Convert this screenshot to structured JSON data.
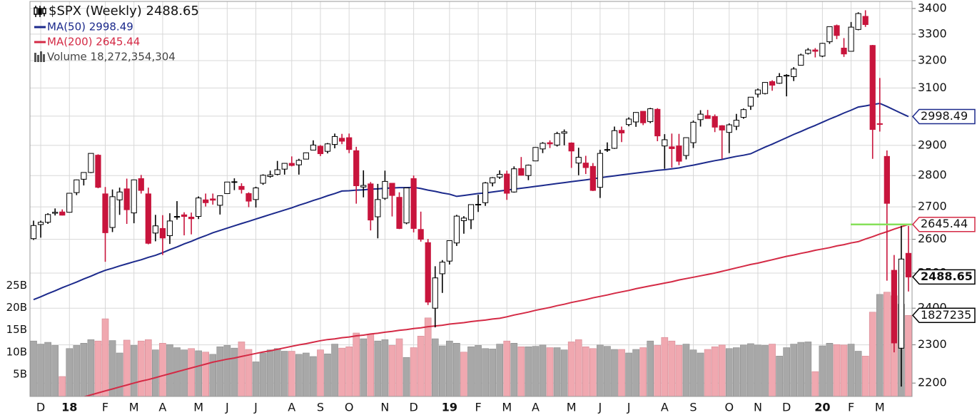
{
  "chart_data": {
    "type": "candlestick",
    "title": "$SPX (Weekly) 2488.65",
    "categories": [
      null,
      "D",
      null,
      null,
      null,
      "18",
      null,
      null,
      null,
      null,
      "F",
      null,
      null,
      null,
      "M",
      null,
      null,
      null,
      "A",
      null,
      null,
      null,
      null,
      "M",
      null,
      null,
      null,
      "J",
      null,
      null,
      null,
      "J",
      null,
      null,
      null,
      null,
      "A",
      null,
      null,
      null,
      "S",
      null,
      null,
      null,
      "O",
      null,
      null,
      null,
      null,
      "N",
      null,
      null,
      null,
      "D",
      null,
      null,
      null,
      null,
      "19",
      null,
      null,
      null,
      "F",
      null,
      null,
      null,
      "M",
      null,
      null,
      null,
      "A",
      null,
      null,
      null,
      null,
      "M",
      null,
      null,
      null,
      "J",
      null,
      null,
      null,
      "J",
      null,
      null,
      null,
      null,
      "A",
      null,
      null,
      null,
      "S",
      null,
      null,
      null,
      null,
      "O",
      null,
      null,
      null,
      "N",
      null,
      null,
      null,
      "D",
      null,
      null,
      null,
      null,
      "20",
      null,
      null,
      null,
      "F",
      null,
      null,
      null,
      "M",
      null,
      null,
      null,
      null
    ],
    "open": [
      2602,
      2645,
      2652,
      2680,
      2684,
      2683,
      2745,
      2788,
      2810,
      2867,
      2741,
      2636,
      2722,
      2757,
      2681,
      2790,
      2741,
      2619,
      2633,
      2611,
      2670,
      2675,
      2668,
      2670,
      2722,
      2725,
      2705,
      2742,
      2780,
      2765,
      2742,
      2723,
      2775,
      2797,
      2804,
      2821,
      2840,
      2835,
      2854,
      2884,
      2897,
      2880,
      2903,
      2924,
      2926,
      2882,
      2763,
      2773,
      2669,
      2727,
      2775,
      2730,
      2650,
      2790,
      2630,
      2590,
      2400,
      2498,
      2535,
      2589,
      2657,
      2660,
      2706,
      2713,
      2776,
      2795,
      2805,
      2747,
      2823,
      2800,
      2848,
      2888,
      2909,
      2901,
      2941,
      2908,
      2841,
      2841,
      2830,
      2762,
      2886,
      2890,
      2951,
      2971,
      2980,
      3017,
      2981,
      3024,
      2898,
      2895,
      2898,
      2866,
      2909,
      2988,
      3002,
      2999,
      2967,
      2944,
      2965,
      2996,
      3035,
      3078,
      3080,
      3123,
      3117,
      3143,
      3141,
      3183,
      3227,
      3240,
      3217,
      3271,
      3333,
      3247,
      3235,
      3318,
      3369,
      3257,
      2974,
      2863,
      2508,
      2291,
      2558
    ],
    "high": [
      2657,
      2657,
      2680,
      2695,
      2692,
      2743,
      2787,
      2810,
      2873,
      2870,
      2763,
      2755,
      2761,
      2790,
      2787,
      2802,
      2761,
      2675,
      2674,
      2680,
      2718,
      2683,
      2682,
      2733,
      2742,
      2742,
      2736,
      2779,
      2791,
      2775,
      2746,
      2764,
      2804,
      2816,
      2848,
      2841,
      2863,
      2855,
      2876,
      2917,
      2901,
      2908,
      2940,
      2939,
      2940,
      2895,
      2817,
      2779,
      2773,
      2816,
      2776,
      2746,
      2761,
      2800,
      2685,
      2601,
      2520,
      2538,
      2597,
      2675,
      2671,
      2708,
      2738,
      2779,
      2795,
      2817,
      2816,
      2830,
      2861,
      2836,
      2894,
      2911,
      2917,
      2946,
      2954,
      2910,
      2892,
      2865,
      2841,
      2885,
      2910,
      2964,
      2964,
      2996,
      3014,
      3017,
      3029,
      3028,
      2938,
      2940,
      2939,
      2927,
      2985,
      3021,
      3022,
      3006,
      2969,
      2975,
      3008,
      3027,
      3067,
      3098,
      3121,
      3128,
      3154,
      3150,
      3176,
      3226,
      3247,
      3247,
      3267,
      3329,
      3337,
      3285,
      3347,
      3385,
      3393,
      3259,
      3136,
      2883,
      2553,
      2641,
      2641
    ],
    "low": [
      2598,
      2605,
      2647,
      2673,
      2673,
      2682,
      2737,
      2768,
      2808,
      2759,
      2533,
      2622,
      2675,
      2647,
      2649,
      2742,
      2585,
      2594,
      2553,
      2586,
      2660,
      2612,
      2615,
      2662,
      2701,
      2707,
      2676,
      2741,
      2753,
      2742,
      2699,
      2698,
      2770,
      2793,
      2801,
      2803,
      2830,
      2803,
      2853,
      2883,
      2864,
      2873,
      2890,
      2904,
      2874,
      2710,
      2730,
      2627,
      2603,
      2722,
      2670,
      2631,
      2646,
      2621,
      2593,
      2409,
      2347,
      2443,
      2525,
      2580,
      2617,
      2631,
      2684,
      2703,
      2765,
      2789,
      2722,
      2745,
      2800,
      2785,
      2848,
      2874,
      2891,
      2896,
      2900,
      2825,
      2801,
      2805,
      2750,
      2728,
      2878,
      2888,
      2911,
      2965,
      2963,
      2969,
      2976,
      2914,
      2822,
      2826,
      2834,
      2853,
      2891,
      2964,
      2993,
      2945,
      2855,
      2874,
      2952,
      2991,
      3022,
      3066,
      3077,
      3090,
      3115,
      3070,
      3125,
      3183,
      3223,
      3212,
      3213,
      3263,
      3281,
      3214,
      3235,
      3315,
      3328,
      2855,
      2947,
      2478,
      2280,
      2191,
      2447
    ],
    "close": [
      2642,
      2652,
      2676,
      2683,
      2674,
      2743,
      2786,
      2810,
      2873,
      2762,
      2620,
      2732,
      2747,
      2691,
      2786,
      2752,
      2588,
      2641,
      2604,
      2656,
      2670,
      2670,
      2663,
      2728,
      2713,
      2721,
      2735,
      2779,
      2780,
      2755,
      2718,
      2760,
      2801,
      2802,
      2819,
      2840,
      2833,
      2850,
      2875,
      2901,
      2872,
      2905,
      2930,
      2914,
      2886,
      2767,
      2768,
      2659,
      2723,
      2781,
      2736,
      2633,
      2760,
      2633,
      2600,
      2417,
      2486,
      2532,
      2596,
      2671,
      2665,
      2707,
      2708,
      2776,
      2793,
      2804,
      2743,
      2822,
      2801,
      2834,
      2893,
      2907,
      2905,
      2940,
      2946,
      2881,
      2860,
      2826,
      2752,
      2873,
      2886,
      2950,
      2942,
      2990,
      3013,
      2977,
      3026,
      2932,
      2919,
      2889,
      2847,
      2926,
      2979,
      3007,
      2992,
      2962,
      2952,
      2970,
      2986,
      3023,
      3067,
      3093,
      3120,
      3110,
      3141,
      3146,
      3169,
      3221,
      3240,
      3235,
      3265,
      3329,
      3295,
      3225,
      3327,
      3380,
      3337,
      2954,
      2972,
      2711,
      2305,
      2541,
      2488.65
    ],
    "up_color": "#ffffff",
    "down_color": "#c8143c",
    "outline_color": "#000000",
    "ylim": [
      2166,
      3428
    ],
    "log_scale": true,
    "yticks": [
      2200,
      2300,
      2400,
      2500,
      2600,
      2700,
      2800,
      2900,
      3000,
      3100,
      3200,
      3300,
      3400
    ],
    "grid": true,
    "series": [
      {
        "name": "MA(50) 2998.49",
        "color": "#1c2a8c",
        "values": [
          2424,
          2432,
          2441,
          2449,
          2458,
          2466,
          2474,
          2483,
          2491,
          2500,
          2508,
          2514,
          2521,
          2527,
          2533,
          2539,
          2546,
          2552,
          2560,
          2569,
          2577,
          2586,
          2594,
          2603,
          2611,
          2620,
          2627,
          2634,
          2641,
          2648,
          2655,
          2662,
          2669,
          2676,
          2683,
          2690,
          2697,
          2705,
          2712,
          2720,
          2727,
          2735,
          2742,
          2750,
          2751,
          2753,
          2754,
          2756,
          2757,
          2759,
          2760,
          2761,
          2761,
          2762,
          2758,
          2753,
          2749,
          2744,
          2740,
          2733,
          2736,
          2739,
          2742,
          2744,
          2747,
          2750,
          2753,
          2756,
          2759,
          2762,
          2765,
          2768,
          2771,
          2774,
          2777,
          2780,
          2783,
          2786,
          2789,
          2793,
          2796,
          2799,
          2802,
          2805,
          2808,
          2811,
          2814,
          2817,
          2819,
          2822,
          2825,
          2830,
          2834,
          2839,
          2844,
          2849,
          2853,
          2858,
          2863,
          2867,
          2872,
          2883,
          2894,
          2904,
          2915,
          2926,
          2937,
          2947,
          2958,
          2968,
          2979,
          2990,
          3000,
          3011,
          3021,
          3032,
          3036,
          3041,
          3045,
          3034,
          3022,
          3010,
          2998.49
        ]
      },
      {
        "name": "MA(200) 2645.44",
        "color": "#d42a45",
        "values": [
          null,
          null,
          null,
          null,
          null,
          null,
          null,
          2165,
          2170,
          2175,
          2180,
          2185,
          2190,
          2195,
          2200,
          2205,
          2209,
          2214,
          2219,
          2224,
          2229,
          2234,
          2239,
          2244,
          2249,
          2254,
          2258,
          2262,
          2265,
          2269,
          2273,
          2277,
          2281,
          2284,
          2288,
          2292,
          2296,
          2300,
          2303,
          2307,
          2311,
          2314,
          2316,
          2319,
          2321,
          2324,
          2326,
          2329,
          2331,
          2334,
          2336,
          2339,
          2341,
          2344,
          2346,
          2349,
          2351,
          2353,
          2356,
          2358,
          2360,
          2363,
          2365,
          2367,
          2370,
          2372,
          2376,
          2381,
          2385,
          2389,
          2394,
          2398,
          2402,
          2407,
          2411,
          2416,
          2420,
          2424,
          2429,
          2433,
          2437,
          2442,
          2446,
          2450,
          2455,
          2459,
          2463,
          2467,
          2471,
          2475,
          2480,
          2484,
          2488,
          2492,
          2496,
          2500,
          2505,
          2510,
          2515,
          2520,
          2525,
          2529,
          2534,
          2539,
          2544,
          2549,
          2553,
          2558,
          2562,
          2567,
          2571,
          2575,
          2580,
          2584,
          2589,
          2593,
          2601,
          2608,
          2616,
          2623,
          2631,
          2638,
          2645.44
        ]
      }
    ],
    "last_line_color": "#86e05a",
    "volume": {
      "name": "Volume 18,272,354,304",
      "values": [
        12.5,
        11.8,
        12.2,
        11.5,
        4.5,
        10.8,
        11.5,
        12,
        12.8,
        12.5,
        17.5,
        12.6,
        9.8,
        12.7,
        11.5,
        12.5,
        12.8,
        10.5,
        12,
        11.7,
        11,
        10.5,
        10.8,
        10.3,
        10,
        9.5,
        11.2,
        11.5,
        10.9,
        12.3,
        10.6,
        7.8,
        9.8,
        10.5,
        10.8,
        10.2,
        10.2,
        9.5,
        9.8,
        9,
        10.5,
        9.6,
        11.8,
        10.9,
        11.2,
        14.3,
        13,
        14,
        12.5,
        12.8,
        11.5,
        13,
        8.8,
        11,
        13.6,
        17.7,
        13,
        11.4,
        12.5,
        12,
        10,
        11.2,
        11.5,
        10.8,
        10.7,
        11.8,
        12.5,
        12,
        11.2,
        11.2,
        11.3,
        11.6,
        11,
        11,
        10.5,
        12.3,
        12.8,
        11.2,
        10.8,
        11.6,
        11.3,
        10.6,
        10.6,
        9.8,
        10.6,
        11,
        12.5,
        11.5,
        13.3,
        12.5,
        11.5,
        11.8,
        10.5,
        9.8,
        10.6,
        11.2,
        11.6,
        10.8,
        11,
        11.6,
        11.9,
        11.6,
        11.5,
        11.8,
        9.1,
        11,
        11.8,
        12.2,
        12.3,
        5.6,
        11.4,
        12,
        11.7,
        11.6,
        11.8,
        10.2,
        9.1,
        19,
        23,
        23.5,
        22.7,
        20.8,
        18.27
      ],
      "ylim": [
        0,
        89
      ],
      "yticks": [
        {
          "value": 5,
          "label": "5B"
        },
        {
          "value": 10,
          "label": "10B"
        },
        {
          "value": 15,
          "label": "15B"
        },
        {
          "value": 20,
          "label": "20B"
        },
        {
          "value": 25,
          "label": "25B"
        }
      ],
      "up_color": "#a8a8a8",
      "down_color": "#f0a8b0",
      "last_label": "1827235"
    }
  }
}
